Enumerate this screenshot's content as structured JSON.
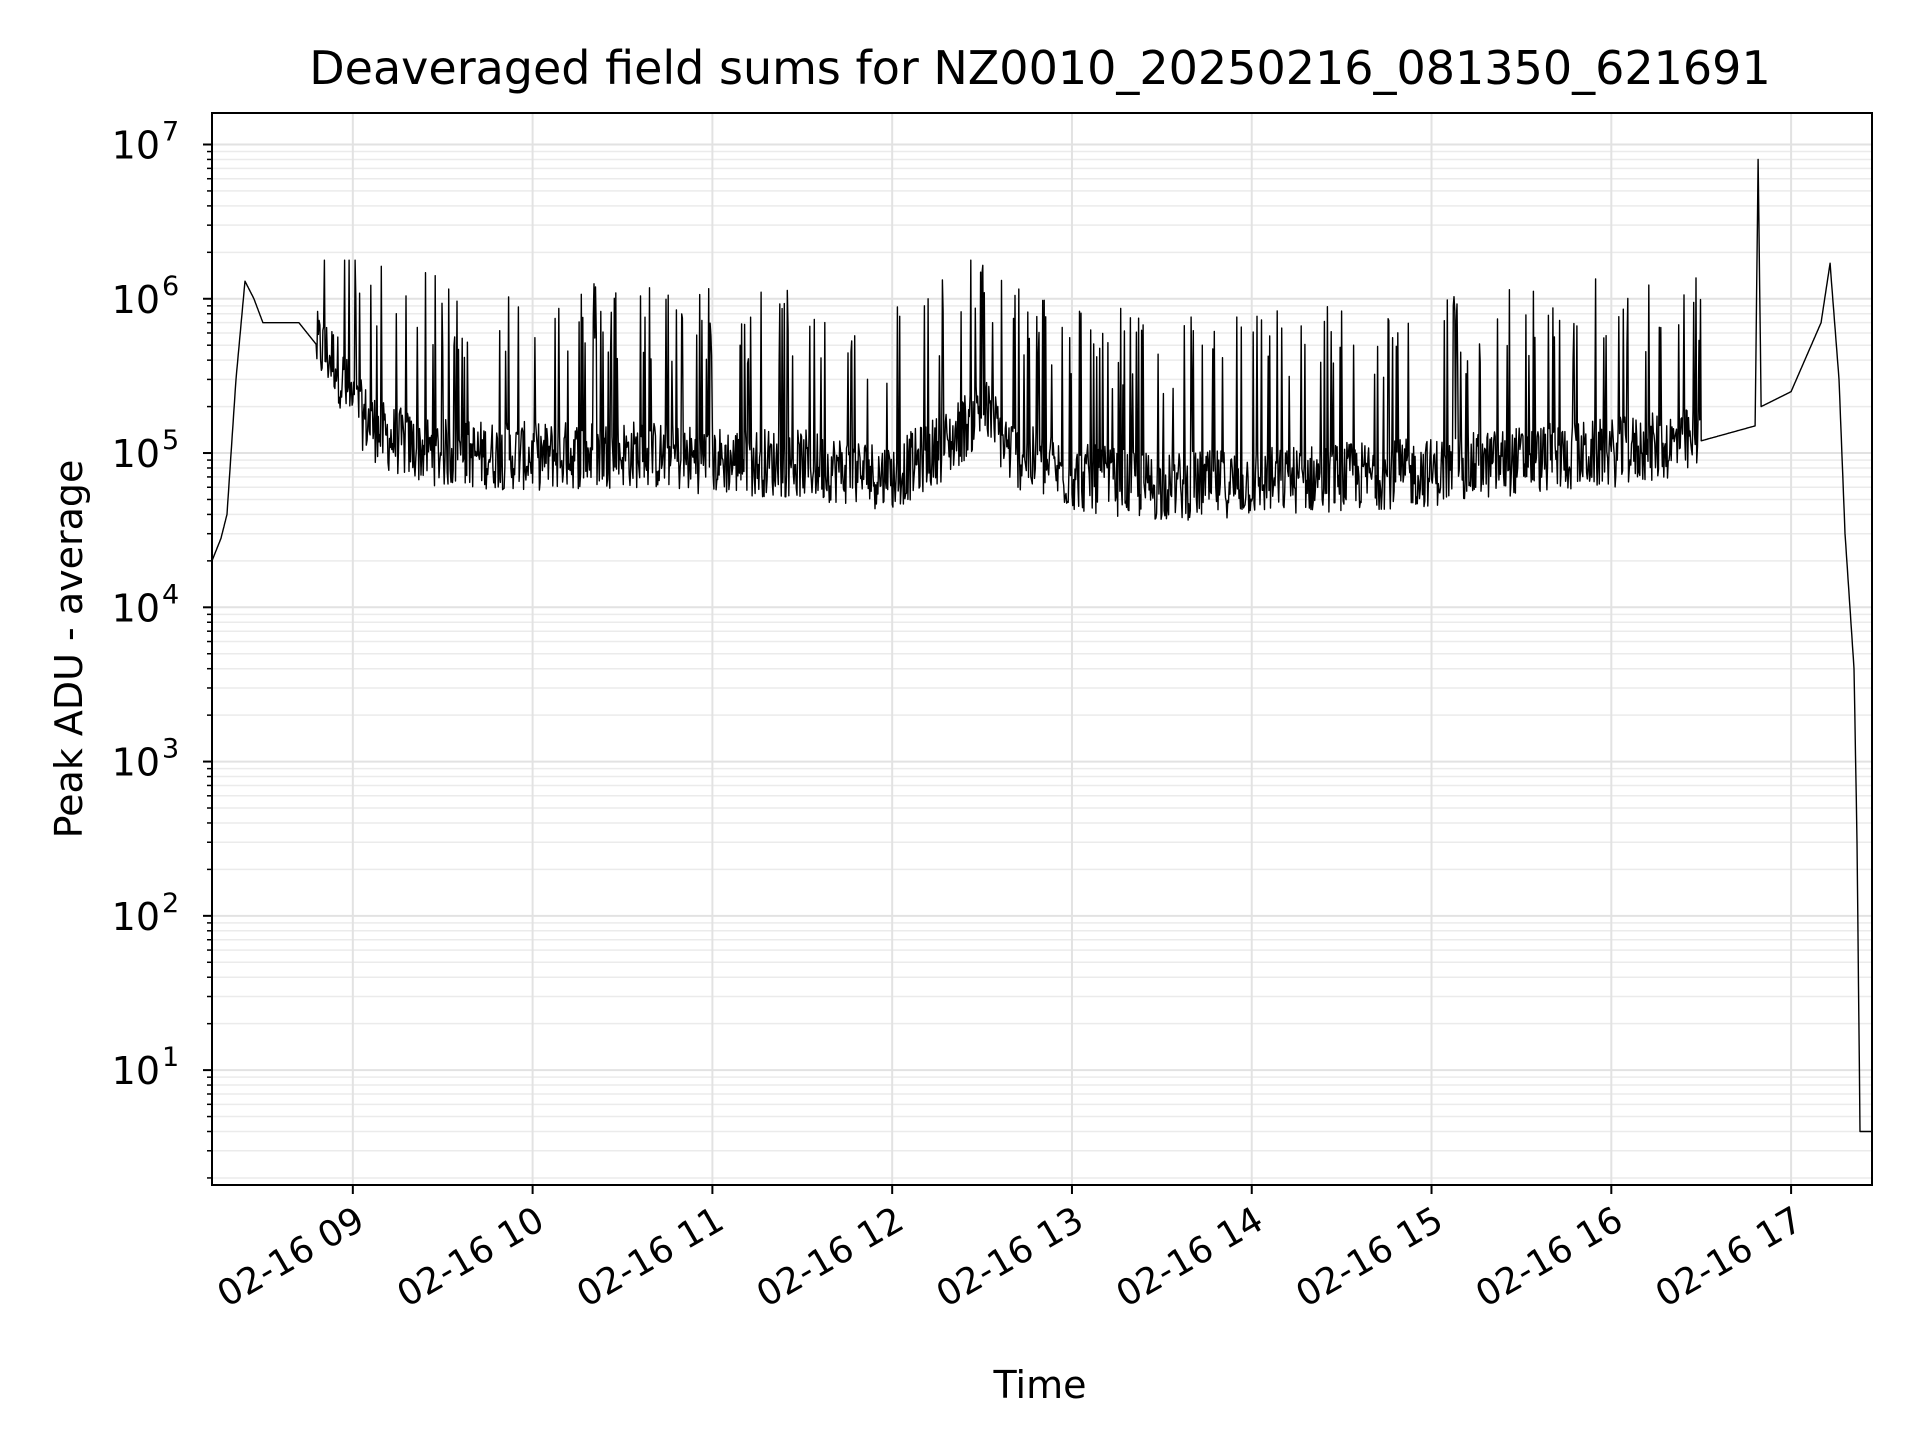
{
  "chart_data": {
    "type": "line",
    "title": "Deaveraged field sums for NZ0010_20250216_081350_621691",
    "xlabel": "Time",
    "ylabel": "Peak ADU - average",
    "yscale": "log",
    "ylim": [
      1.8,
      16000000
    ],
    "xlim": [
      "02-16 08:13",
      "02-16 17:27"
    ],
    "grid": "major and minor",
    "x_ticks": [
      {
        "t": "02-16 09:00",
        "label": "02-16 09"
      },
      {
        "t": "02-16 10:00",
        "label": "02-16 10"
      },
      {
        "t": "02-16 11:00",
        "label": "02-16 11"
      },
      {
        "t": "02-16 12:00",
        "label": "02-16 12"
      },
      {
        "t": "02-16 13:00",
        "label": "02-16 13"
      },
      {
        "t": "02-16 14:00",
        "label": "02-16 14"
      },
      {
        "t": "02-16 15:00",
        "label": "02-16 15"
      },
      {
        "t": "02-16 16:00",
        "label": "02-16 16"
      },
      {
        "t": "02-16 17:00",
        "label": "02-16 17"
      }
    ],
    "y_ticks": [
      {
        "value": 10,
        "base": "10",
        "exp": "1"
      },
      {
        "value": 100,
        "base": "10",
        "exp": "2"
      },
      {
        "value": 1000,
        "base": "10",
        "exp": "3"
      },
      {
        "value": 10000,
        "base": "10",
        "exp": "4"
      },
      {
        "value": 100000,
        "base": "10",
        "exp": "5"
      },
      {
        "value": 1000000,
        "base": "10",
        "exp": "6"
      },
      {
        "value": 10000000,
        "base": "10",
        "exp": "7"
      }
    ],
    "series": [
      {
        "color": "#000000",
        "points": [
          [
            "02-16 08:13",
            20000
          ],
          [
            "02-16 08:16",
            28000
          ],
          [
            "02-16 08:18",
            40000
          ],
          [
            "02-16 08:21",
            300000
          ],
          [
            "02-16 08:24",
            1300000
          ],
          [
            "02-16 08:27",
            1000000
          ],
          [
            "02-16 08:30",
            700000
          ],
          [
            "02-16 08:36",
            700000
          ],
          [
            "02-16 08:42",
            700000
          ],
          [
            "02-16 08:48",
            500000
          ],
          [
            "02-16 08:54",
            400000
          ],
          [
            "02-16 09:00",
            200000
          ],
          [
            "02-16 09:10",
            130000
          ],
          [
            "02-16 09:20",
            110000
          ],
          [
            "02-16 09:30",
            100000
          ],
          [
            "02-16 10:00",
            95000
          ],
          [
            "02-16 10:30",
            100000
          ],
          [
            "02-16 11:00",
            90000
          ],
          [
            "02-16 11:30",
            85000
          ],
          [
            "02-16 12:00",
            70000
          ],
          [
            "02-16 12:20",
            120000
          ],
          [
            "02-16 12:30",
            200000
          ],
          [
            "02-16 12:40",
            100000
          ],
          [
            "02-16 13:00",
            70000
          ],
          [
            "02-16 13:30",
            60000
          ],
          [
            "02-16 14:00",
            65000
          ],
          [
            "02-16 14:30",
            70000
          ],
          [
            "02-16 15:00",
            75000
          ],
          [
            "02-16 15:30",
            90000
          ],
          [
            "02-16 16:00",
            100000
          ],
          [
            "02-16 16:30",
            120000
          ],
          [
            "02-16 16:48",
            150000
          ],
          [
            "02-16 16:49",
            8000000
          ],
          [
            "02-16 16:50",
            200000
          ],
          [
            "02-16 17:00",
            250000
          ],
          [
            "02-16 17:10",
            700000
          ],
          [
            "02-16 17:13",
            1700000
          ],
          [
            "02-16 17:16",
            300000
          ],
          [
            "02-16 17:18",
            30000
          ],
          [
            "02-16 17:21",
            4000
          ],
          [
            "02-16 17:22",
            300
          ],
          [
            "02-16 17:23",
            4
          ],
          [
            "02-16 17:27",
            4
          ]
        ]
      }
    ]
  }
}
